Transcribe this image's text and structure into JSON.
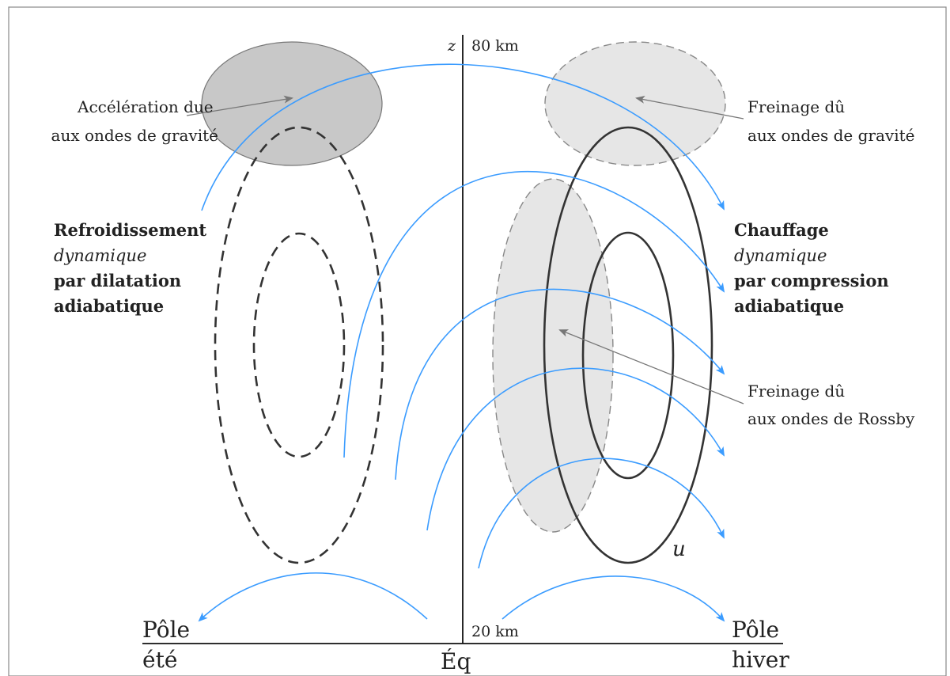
{
  "axis": {
    "z_label": "z",
    "top_altitude": "80 km",
    "bottom_altitude": "20 km",
    "left_end": {
      "line1": "Pôle",
      "line2": "été"
    },
    "center": "Éq",
    "right_end": {
      "line1": "Pôle",
      "line2": "hiver"
    }
  },
  "labels": {
    "gravity_accel": {
      "line1": "Accélération due",
      "line2": "aux ondes de gravité"
    },
    "gravity_drag": {
      "line1": "Freinage dû",
      "line2": "aux ondes de gravité"
    },
    "rossby_drag": {
      "line1": "Freinage dû",
      "line2": "aux ondes de Rossby"
    },
    "cooling": {
      "line1": "Refroidissement",
      "line2": "dynamique",
      "line3": "par dilatation",
      "line4": "adiabatique"
    },
    "heating": {
      "line1": "Chauffage",
      "line2": "dynamique",
      "line3": "par compression",
      "line4": "adiabatique"
    },
    "wind": "u"
  },
  "colors": {
    "flow_arrows": "#3b9cff",
    "gravity_accel_fill": "#c8c8c8",
    "drag_fill": "#e6e6e6",
    "contour": "#333333"
  }
}
